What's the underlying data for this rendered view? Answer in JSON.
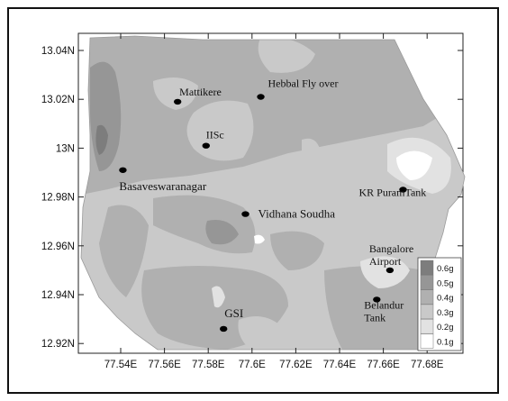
{
  "map": {
    "x_ticks": [
      "77.54E",
      "77.56E",
      "77.58E",
      "77.6E",
      "77.62E",
      "77.64E",
      "77.66E",
      "77.68E"
    ],
    "y_ticks": [
      "13.04N",
      "13.02N",
      "13N",
      "12.98N",
      "12.96N",
      "12.94N",
      "12.92N"
    ],
    "places": [
      {
        "label": "Mattikere",
        "lon": 77.566,
        "lat": 13.019
      },
      {
        "label": "Hebbal Fly over",
        "lon": 77.604,
        "lat": 13.021
      },
      {
        "label": "IISc",
        "lon": 77.579,
        "lat": 13.001
      },
      {
        "label": "Basaveswaranagar",
        "lon": 77.541,
        "lat": 12.991
      },
      {
        "label": "Vidhana Soudha",
        "lon": 77.597,
        "lat": 12.973
      },
      {
        "label": "KR PuramTank",
        "lon": 77.669,
        "lat": 12.983
      },
      {
        "label": "Bangalore Airport",
        "lon": 77.663,
        "lat": 12.95
      },
      {
        "label": "Belandur Tank",
        "lon": 77.657,
        "lat": 12.938
      },
      {
        "label": "GSI",
        "lon": 77.587,
        "lat": 12.926
      }
    ],
    "legend": [
      {
        "label": "0.6g",
        "color": "#7d7d7d"
      },
      {
        "label": "0.5g",
        "color": "#969696"
      },
      {
        "label": "0.4g",
        "color": "#b0b0b0"
      },
      {
        "label": "0.3g",
        "color": "#c9c9c9"
      },
      {
        "label": "0.2g",
        "color": "#e2e2e2"
      },
      {
        "label": "0.1g",
        "color": "#ffffff"
      }
    ]
  }
}
